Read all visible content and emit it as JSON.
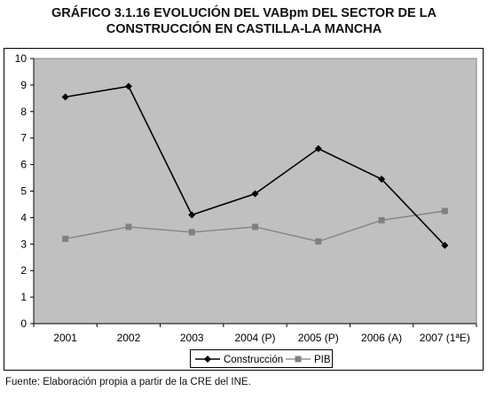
{
  "title_line1": "GRÁFICO 3.1.16 EVOLUCIÓN DEL VABpm DEL SECTOR DE LA",
  "title_line2": "CONSTRUCCIÓN EN CASTILLA-LA MANCHA",
  "footer": "Fuente: Elaboración propia a partir de la CRE del INE.",
  "chart_data": {
    "type": "line",
    "categories": [
      "2001",
      "2002",
      "2003",
      "2004 (P)",
      "2005 (P)",
      "2006 (A)",
      "2007 (1ªE)"
    ],
    "series": [
      {
        "name": "Construcción",
        "values": [
          8.55,
          8.95,
          4.1,
          4.9,
          6.6,
          5.45,
          2.95
        ],
        "color": "#000000",
        "marker": "diamond"
      },
      {
        "name": "PIB",
        "values": [
          3.2,
          3.65,
          3.45,
          3.65,
          3.1,
          3.9,
          4.25
        ],
        "color": "#808080",
        "marker": "square"
      }
    ],
    "ylim": [
      0,
      10
    ],
    "yticks": [
      "0",
      "1",
      "2",
      "3",
      "4",
      "5",
      "6",
      "7",
      "8",
      "9",
      "10"
    ],
    "grid": false,
    "plot_background": "#c0c0c0",
    "legend_position": "bottom"
  }
}
